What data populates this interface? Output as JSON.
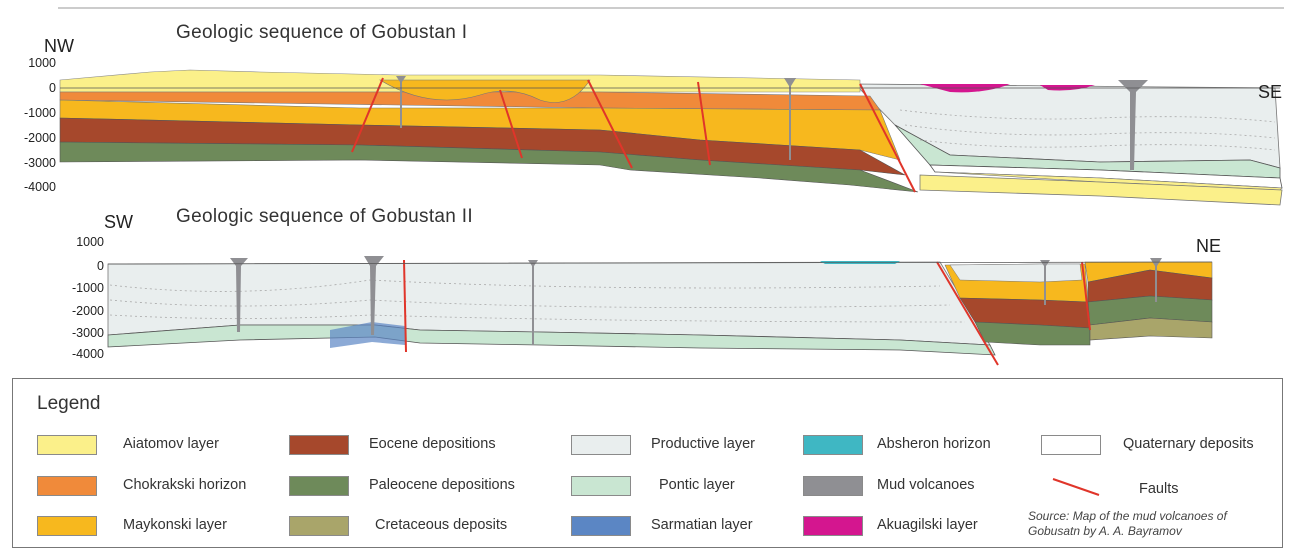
{
  "sections": [
    {
      "title": "Geologic sequence of Gobustan I",
      "left_label": "NW",
      "right_label": "SE",
      "ticks": [
        "1000",
        "0",
        "-1000",
        "-2000",
        "-3000",
        "-4000"
      ]
    },
    {
      "title": "Geologic sequence of Gobustan II",
      "left_label": "SW",
      "right_label": "NE",
      "ticks": [
        "1000",
        "0",
        "-1000",
        "-2000",
        "-3000",
        "-4000"
      ]
    }
  ],
  "legend": {
    "title": "Legend",
    "items": [
      {
        "label": "Aiatomov layer",
        "color": "#fbf08a"
      },
      {
        "label": "Chokrakski horizon",
        "color": "#f08a3a"
      },
      {
        "label": "Maykonski layer",
        "color": "#f7b81e"
      },
      {
        "label": "Eocene depositions",
        "color": "#a6482c"
      },
      {
        "label": "Paleocene depositions",
        "color": "#6e8a5a"
      },
      {
        "label": "Cretaceous deposits",
        "color": "#a9a56a"
      },
      {
        "label": "Productive layer",
        "color": "#e9eeee"
      },
      {
        "label": "Pontic layer",
        "color": "#c9e6d2"
      },
      {
        "label": "Sarmatian layer",
        "color": "#5b86c4"
      },
      {
        "label": "Absheron horizon",
        "color": "#3fb7c3"
      },
      {
        "label": "Mud volcanoes",
        "color": "#8f8f93"
      },
      {
        "label": "Akuagilski layer",
        "color": "#d4168f"
      },
      {
        "label": "Quaternary deposits",
        "color": "#ffffff"
      },
      {
        "label": "Faults",
        "color": "#e0352a"
      }
    ],
    "source": "Source: Map of the mud volcanoes of Gobusatn by  A. A. Bayramov"
  }
}
